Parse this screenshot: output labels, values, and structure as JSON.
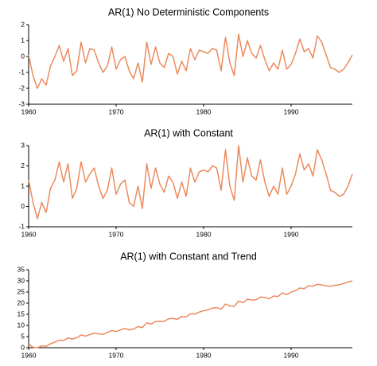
{
  "chart_data": [
    {
      "type": "line",
      "title": "AR(1) No Deterministic Components",
      "x": [
        1960,
        1960.5,
        1961,
        1961.5,
        1962,
        1962.5,
        1963,
        1963.5,
        1964,
        1964.5,
        1965,
        1965.5,
        1966,
        1966.5,
        1967,
        1967.5,
        1968,
        1968.5,
        1969,
        1969.5,
        1970,
        1970.5,
        1971,
        1971.5,
        1972,
        1972.5,
        1973,
        1973.5,
        1974,
        1974.5,
        1975,
        1975.5,
        1976,
        1976.5,
        1977,
        1977.5,
        1978,
        1978.5,
        1979,
        1979.5,
        1980,
        1980.5,
        1981,
        1981.5,
        1982,
        1982.5,
        1983,
        1983.5,
        1984,
        1984.5,
        1985,
        1985.5,
        1986,
        1986.5,
        1987,
        1987.5,
        1988,
        1988.5,
        1989,
        1989.5,
        1990,
        1990.5,
        1991,
        1991.5,
        1992,
        1992.5,
        1993,
        1993.5,
        1994,
        1994.5,
        1995,
        1995.5,
        1996,
        1996.5,
        1997
      ],
      "series": [
        {
          "color": "#ec8a5e",
          "values": [
            0.1,
            -1.2,
            -2.0,
            -1.4,
            -1.8,
            -0.6,
            0.0,
            0.7,
            -0.3,
            0.5,
            -1.2,
            -0.9,
            0.9,
            -0.4,
            0.5,
            0.4,
            -0.4,
            -1.0,
            -0.6,
            0.6,
            -0.8,
            -0.2,
            0.0,
            -0.9,
            -1.4,
            -0.4,
            -1.6,
            0.9,
            -0.5,
            0.6,
            -0.4,
            -0.7,
            0.2,
            0.0,
            -1.1,
            -0.3,
            -0.9,
            0.5,
            -0.2,
            0.4,
            0.3,
            0.2,
            0.5,
            0.4,
            -0.9,
            1.2,
            -0.4,
            -1.2,
            1.4,
            0.0,
            1.0,
            0.2,
            -0.1,
            0.7,
            -0.2,
            -0.9,
            -0.4,
            -0.8,
            0.4,
            -0.8,
            -0.5,
            0.2,
            1.1,
            0.3,
            0.5,
            -0.1,
            1.3,
            0.9,
            0.1,
            -0.7,
            -0.8,
            -1.0,
            -0.8,
            -0.4,
            0.1
          ]
        }
      ],
      "xlim": [
        1960,
        1997
      ],
      "xticks": [
        1960,
        1970,
        1980,
        1990
      ],
      "ylim": [
        -3,
        2
      ],
      "yticks": [
        -3,
        -2,
        -1,
        0,
        1,
        2
      ]
    },
    {
      "type": "line",
      "title": "AR(1) with Constant",
      "x": [
        1960,
        1960.5,
        1961,
        1961.5,
        1962,
        1962.5,
        1963,
        1963.5,
        1964,
        1964.5,
        1965,
        1965.5,
        1966,
        1966.5,
        1967,
        1967.5,
        1968,
        1968.5,
        1969,
        1969.5,
        1970,
        1970.5,
        1971,
        1971.5,
        1972,
        1972.5,
        1973,
        1973.5,
        1974,
        1974.5,
        1975,
        1975.5,
        1976,
        1976.5,
        1977,
        1977.5,
        1978,
        1978.5,
        1979,
        1979.5,
        1980,
        1980.5,
        1981,
        1981.5,
        1982,
        1982.5,
        1983,
        1983.5,
        1984,
        1984.5,
        1985,
        1985.5,
        1986,
        1986.5,
        1987,
        1987.5,
        1988,
        1988.5,
        1989,
        1989.5,
        1990,
        1990.5,
        1991,
        1991.5,
        1992,
        1992.5,
        1993,
        1993.5,
        1994,
        1994.5,
        1995,
        1995.5,
        1996,
        1996.5,
        1997
      ],
      "series": [
        {
          "color": "#ec8a5e",
          "values": [
            1.3,
            0.2,
            -0.6,
            0.2,
            -0.3,
            0.9,
            1.3,
            2.2,
            1.2,
            2.1,
            0.4,
            0.9,
            2.2,
            1.2,
            1.6,
            1.9,
            1.0,
            0.4,
            0.8,
            1.9,
            0.6,
            1.1,
            1.3,
            0.2,
            0.0,
            1.0,
            -0.1,
            2.1,
            0.9,
            1.9,
            1.1,
            0.7,
            1.5,
            1.2,
            0.4,
            1.2,
            0.5,
            1.9,
            1.2,
            1.7,
            1.8,
            1.7,
            2.0,
            1.9,
            0.8,
            2.8,
            1.0,
            0.3,
            3.0,
            1.2,
            2.4,
            1.5,
            1.3,
            2.3,
            1.2,
            0.5,
            1.0,
            0.6,
            1.9,
            0.6,
            1.0,
            1.6,
            2.6,
            1.8,
            2.1,
            1.5,
            2.8,
            2.3,
            1.6,
            0.8,
            0.7,
            0.5,
            0.6,
            1.0,
            1.6
          ]
        }
      ],
      "xlim": [
        1960,
        1997
      ],
      "xticks": [
        1960,
        1970,
        1980,
        1990
      ],
      "ylim": [
        -1,
        3
      ],
      "yticks": [
        -1,
        0,
        1,
        2,
        3
      ]
    },
    {
      "type": "line",
      "title": "AR(1) with Constant and Trend",
      "x": [
        1960,
        1960.5,
        1961,
        1961.5,
        1962,
        1962.5,
        1963,
        1963.5,
        1964,
        1964.5,
        1965,
        1965.5,
        1966,
        1966.5,
        1967,
        1967.5,
        1968,
        1968.5,
        1969,
        1969.5,
        1970,
        1970.5,
        1971,
        1971.5,
        1972,
        1972.5,
        1973,
        1973.5,
        1974,
        1974.5,
        1975,
        1975.5,
        1976,
        1976.5,
        1977,
        1977.5,
        1978,
        1978.5,
        1979,
        1979.5,
        1980,
        1980.5,
        1981,
        1981.5,
        1982,
        1982.5,
        1983,
        1983.5,
        1984,
        1984.5,
        1985,
        1985.5,
        1986,
        1986.5,
        1987,
        1987.5,
        1988,
        1988.5,
        1989,
        1989.5,
        1990,
        1990.5,
        1991,
        1991.5,
        1992,
        1992.5,
        1993,
        1993.5,
        1994,
        1994.5,
        1995,
        1995.5,
        1996,
        1996.5,
        1997
      ],
      "series": [
        {
          "color": "#ec8a5e",
          "values": [
            1.5,
            0.2,
            0.0,
            0.8,
            0.6,
            1.8,
            2.5,
            3.4,
            3.2,
            4.4,
            3.9,
            4.5,
            5.7,
            5.2,
            5.9,
            6.5,
            6.2,
            6.0,
            6.8,
            7.7,
            7.2,
            8.0,
            8.6,
            8.0,
            8.4,
            9.5,
            9.0,
            11.2,
            10.6,
            11.8,
            11.9,
            11.8,
            13.0,
            13.1,
            12.8,
            14.0,
            13.8,
            15.2,
            15.1,
            16.0,
            16.6,
            17.0,
            17.8,
            18.0,
            17.3,
            19.6,
            18.8,
            18.5,
            21.0,
            20.2,
            21.8,
            21.4,
            21.5,
            22.8,
            22.5,
            22.0,
            23.2,
            23.0,
            24.6,
            23.8,
            25.0,
            25.6,
            26.8,
            26.5,
            27.8,
            27.6,
            28.5,
            28.2,
            27.8,
            27.6,
            28.0,
            28.3,
            28.8,
            29.5,
            30.0
          ]
        }
      ],
      "xlim": [
        1960,
        1997
      ],
      "xticks": [
        1960,
        1970,
        1980,
        1990
      ],
      "ylim": [
        0,
        35
      ],
      "yticks": [
        0,
        5,
        10,
        15,
        20,
        25,
        30,
        35
      ]
    }
  ]
}
